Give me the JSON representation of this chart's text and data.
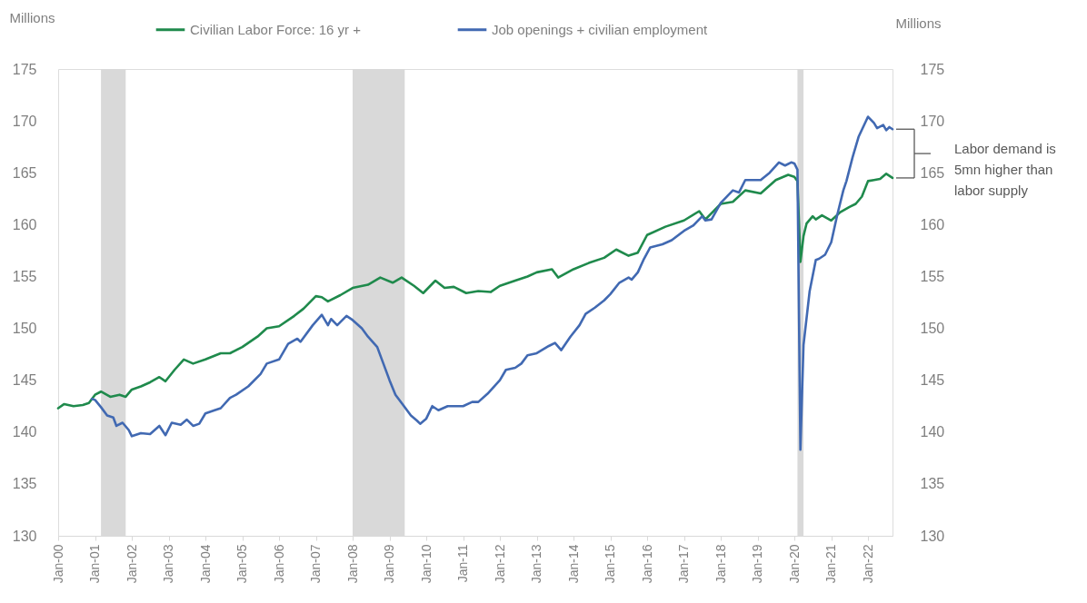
{
  "chart_data": {
    "type": "line",
    "ylabel": "Millions",
    "y2label": "Millions",
    "xlim": [
      "2000-01",
      "2022-09"
    ],
    "xticks": [
      {
        "value": "2000-01",
        "label": "Jan-00"
      },
      {
        "value": "2001-01",
        "label": "Jan-01"
      },
      {
        "value": "2002-01",
        "label": "Jan-02"
      },
      {
        "value": "2003-01",
        "label": "Jan-03"
      },
      {
        "value": "2004-01",
        "label": "Jan-04"
      },
      {
        "value": "2005-01",
        "label": "Jan-05"
      },
      {
        "value": "2006-01",
        "label": "Jan-06"
      },
      {
        "value": "2007-01",
        "label": "Jan-07"
      },
      {
        "value": "2008-01",
        "label": "Jan-08"
      },
      {
        "value": "2009-01",
        "label": "Jan-09"
      },
      {
        "value": "2010-01",
        "label": "Jan-10"
      },
      {
        "value": "2011-01",
        "label": "Jan-11"
      },
      {
        "value": "2012-01",
        "label": "Jan-12"
      },
      {
        "value": "2013-01",
        "label": "Jan-13"
      },
      {
        "value": "2014-01",
        "label": "Jan-14"
      },
      {
        "value": "2015-01",
        "label": "Jan-15"
      },
      {
        "value": "2016-01",
        "label": "Jan-16"
      },
      {
        "value": "2017-01",
        "label": "Jan-17"
      },
      {
        "value": "2018-01",
        "label": "Jan-18"
      },
      {
        "value": "2019-01",
        "label": "Jan-19"
      },
      {
        "value": "2020-01",
        "label": "Jan-20"
      },
      {
        "value": "2021-01",
        "label": "Jan-21"
      },
      {
        "value": "2022-01",
        "label": "Jan-22"
      }
    ],
    "ylim": [
      130,
      175
    ],
    "yticks": [
      130,
      135,
      140,
      145,
      150,
      155,
      160,
      165,
      170,
      175
    ],
    "y2lim": [
      130,
      175
    ],
    "y2ticks": [
      130,
      135,
      140,
      145,
      150,
      155,
      160,
      165,
      170,
      175
    ],
    "legend": "top",
    "bands": [
      {
        "axis": "x",
        "from": "2001-03",
        "to": "2001-11",
        "color": "#d9d9d9"
      },
      {
        "axis": "x",
        "from": "2008-01",
        "to": "2009-06",
        "color": "#d9d9d9"
      },
      {
        "axis": "x",
        "from": "2020-02",
        "to": "2020-04",
        "color": "#d9d9d9"
      }
    ],
    "annotations": [
      "Labor demand is\n5mn higher than\nlabor supply"
    ],
    "series": [
      {
        "name": "Civilian Labor Force: 16 yr +",
        "color": "#1f8a4c",
        "x": [
          "2000-01",
          "2000-03",
          "2000-06",
          "2000-09",
          "2000-11",
          "2001-01",
          "2001-03",
          "2001-06",
          "2001-09",
          "2001-11",
          "2002-01",
          "2002-04",
          "2002-07",
          "2002-10",
          "2002-12",
          "2003-03",
          "2003-06",
          "2003-09",
          "2004-01",
          "2004-06",
          "2004-09",
          "2005-01",
          "2005-06",
          "2005-09",
          "2006-01",
          "2006-06",
          "2006-09",
          "2007-01",
          "2007-03",
          "2007-05",
          "2007-09",
          "2008-01",
          "2008-06",
          "2008-10",
          "2009-02",
          "2009-05",
          "2009-09",
          "2009-12",
          "2010-04",
          "2010-07",
          "2010-10",
          "2011-02",
          "2011-06",
          "2011-10",
          "2012-01",
          "2012-06",
          "2012-10",
          "2013-01",
          "2013-06",
          "2013-08",
          "2014-01",
          "2014-06",
          "2014-11",
          "2015-03",
          "2015-07",
          "2015-10",
          "2016-01",
          "2016-07",
          "2017-01",
          "2017-06",
          "2017-08",
          "2018-01",
          "2018-05",
          "2018-09",
          "2019-02",
          "2019-07",
          "2019-11",
          "2020-01",
          "2020-02",
          "2020-03",
          "2020-04",
          "2020-05",
          "2020-07",
          "2020-08",
          "2020-10",
          "2021-01",
          "2021-04",
          "2021-07",
          "2021-09",
          "2021-11",
          "2022-01",
          "2022-03",
          "2022-05",
          "2022-07",
          "2022-09"
        ],
        "values": [
          142.3,
          142.7,
          142.5,
          142.6,
          142.8,
          143.6,
          143.9,
          143.4,
          143.6,
          143.4,
          144.1,
          144.4,
          144.8,
          145.3,
          144.9,
          146.0,
          147.0,
          146.6,
          147.0,
          147.6,
          147.6,
          148.2,
          149.2,
          150.0,
          150.2,
          151.2,
          151.9,
          153.1,
          153.0,
          152.6,
          153.2,
          153.9,
          154.2,
          154.9,
          154.4,
          154.9,
          154.1,
          153.4,
          154.6,
          153.9,
          154.0,
          153.4,
          153.6,
          153.5,
          154.1,
          154.6,
          155.0,
          155.4,
          155.7,
          154.9,
          155.7,
          156.3,
          156.8,
          157.6,
          157.0,
          157.3,
          159.0,
          159.8,
          160.4,
          161.3,
          160.5,
          162.0,
          162.2,
          163.3,
          163.0,
          164.3,
          164.8,
          164.6,
          164.2,
          156.4,
          158.9,
          160.1,
          160.8,
          160.5,
          160.9,
          160.4,
          161.2,
          161.7,
          162.0,
          162.7,
          164.2,
          164.3,
          164.4,
          164.9,
          164.5
        ]
      },
      {
        "name": "Job openings + civilian employment",
        "color": "#4169b2",
        "x": [
          "2000-12",
          "2001-01",
          "2001-03",
          "2001-05",
          "2001-07",
          "2001-08",
          "2001-10",
          "2001-12",
          "2002-01",
          "2002-04",
          "2002-07",
          "2002-10",
          "2002-12",
          "2003-02",
          "2003-05",
          "2003-07",
          "2003-09",
          "2003-11",
          "2004-01",
          "2004-04",
          "2004-06",
          "2004-09",
          "2004-11",
          "2005-03",
          "2005-07",
          "2005-09",
          "2006-01",
          "2006-04",
          "2006-07",
          "2006-08",
          "2006-12",
          "2007-03",
          "2007-05",
          "2007-06",
          "2007-08",
          "2007-11",
          "2008-01",
          "2008-04",
          "2008-06",
          "2008-09",
          "2008-11",
          "2009-01",
          "2009-03",
          "2009-05",
          "2009-08",
          "2009-10",
          "2009-11",
          "2010-01",
          "2010-03",
          "2010-05",
          "2010-08",
          "2011-01",
          "2011-04",
          "2011-06",
          "2011-09",
          "2012-01",
          "2012-03",
          "2012-06",
          "2012-08",
          "2012-10",
          "2013-01",
          "2013-05",
          "2013-07",
          "2013-09",
          "2013-12",
          "2014-03",
          "2014-05",
          "2014-08",
          "2014-11",
          "2015-01",
          "2015-04",
          "2015-07",
          "2015-08",
          "2015-10",
          "2015-12",
          "2016-02",
          "2016-06",
          "2016-09",
          "2017-01",
          "2017-04",
          "2017-07",
          "2017-08",
          "2017-10",
          "2018-01",
          "2018-05",
          "2018-07",
          "2018-09",
          "2019-02",
          "2019-05",
          "2019-08",
          "2019-10",
          "2019-12",
          "2020-01",
          "2020-02",
          "2020-03",
          "2020-04",
          "2020-06",
          "2020-08",
          "2020-09",
          "2020-11",
          "2021-01",
          "2021-03",
          "2021-05",
          "2021-06",
          "2021-08",
          "2021-10",
          "2022-01",
          "2022-03",
          "2022-04",
          "2022-06",
          "2022-07",
          "2022-08",
          "2022-09"
        ],
        "values": [
          143.2,
          143.1,
          142.4,
          141.6,
          141.4,
          140.6,
          140.9,
          140.2,
          139.6,
          139.9,
          139.8,
          140.6,
          139.7,
          140.9,
          140.7,
          141.2,
          140.6,
          140.8,
          141.8,
          142.1,
          142.3,
          143.3,
          143.6,
          144.4,
          145.6,
          146.6,
          147.0,
          148.5,
          149.0,
          148.7,
          150.3,
          151.3,
          150.3,
          150.9,
          150.3,
          151.2,
          150.8,
          150.0,
          149.2,
          148.2,
          146.6,
          145.0,
          143.6,
          142.8,
          141.6,
          141.1,
          140.8,
          141.3,
          142.5,
          142.1,
          142.5,
          142.5,
          142.9,
          142.9,
          143.7,
          145.0,
          146.0,
          146.2,
          146.6,
          147.4,
          147.6,
          148.3,
          148.6,
          147.9,
          149.2,
          150.3,
          151.4,
          152.0,
          152.7,
          153.3,
          154.4,
          154.9,
          154.7,
          155.4,
          156.7,
          157.8,
          158.1,
          158.5,
          159.4,
          159.9,
          160.8,
          160.4,
          160.5,
          162.1,
          163.3,
          163.1,
          164.3,
          164.3,
          165.0,
          166.0,
          165.7,
          166.0,
          165.9,
          165.3,
          138.3,
          148.4,
          153.6,
          156.6,
          156.7,
          157.1,
          158.3,
          160.9,
          163.3,
          164.2,
          166.5,
          168.5,
          170.4,
          169.8,
          169.3,
          169.6,
          169.1,
          169.4,
          169.2
        ]
      }
    ]
  }
}
